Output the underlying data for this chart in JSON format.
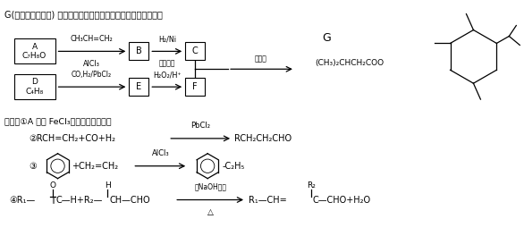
{
  "bg_color": "#ffffff",
  "title": "G(异戊酸薄荷醇酯) 是一种治疗心脏病的药物，其合成路线如下：",
  "known1": "已知：①A 能与 FeCl₃溶液发生显色反应",
  "conc_h2so4": "浓硫酸",
  "high_temp": "高温高压",
  "dilute_naoh": "稀NaOH溶液"
}
